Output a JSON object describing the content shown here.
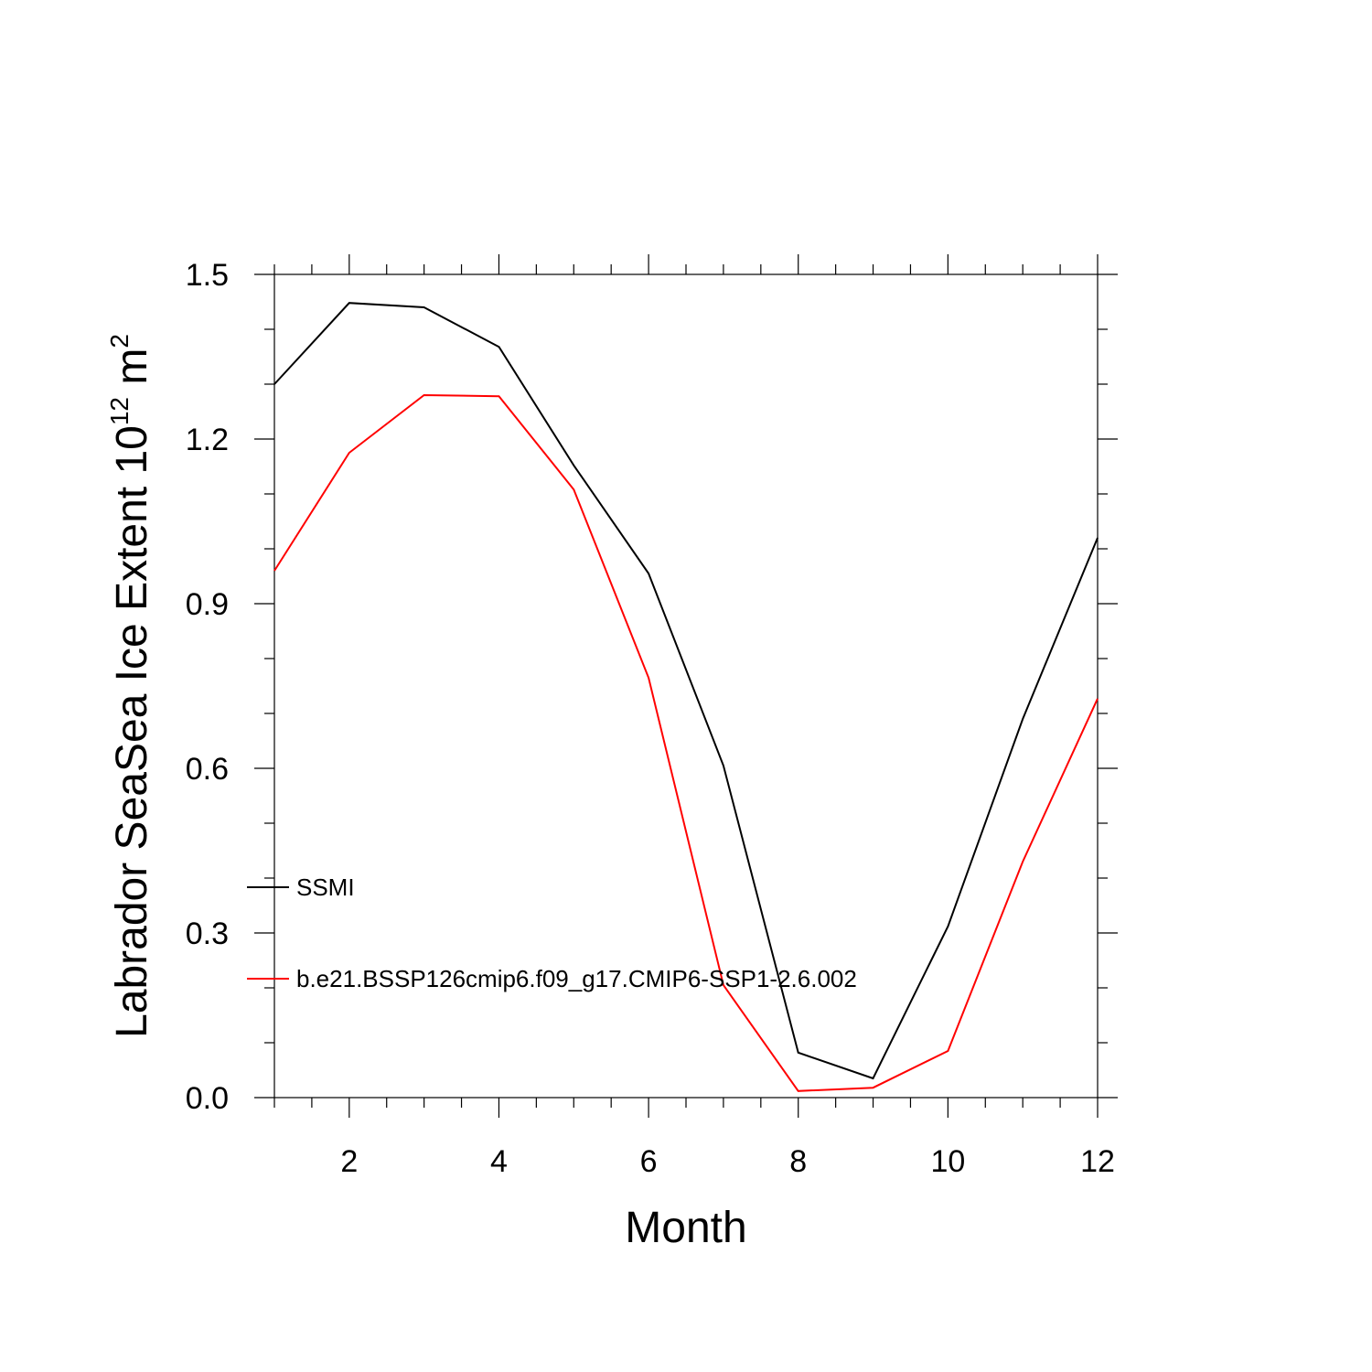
{
  "chart_data": {
    "type": "line",
    "title": "",
    "xlabel": "Month",
    "ylabel": {
      "main": "Labrador SeaSea Ice Extent 10",
      "superscript1": "12",
      "unit": "m",
      "superscript2": "2"
    },
    "xlim": [
      1,
      12
    ],
    "ylim": [
      0,
      1.5
    ],
    "x_ticks": [
      2,
      4,
      6,
      8,
      10,
      12
    ],
    "y_ticks": [
      "0.0",
      "0.3",
      "0.6",
      "0.9",
      "1.2",
      "1.5"
    ],
    "x": [
      1,
      2,
      3,
      4,
      5,
      6,
      7,
      8,
      9,
      10,
      11,
      12
    ],
    "grid": false,
    "legend_position": "bottom-left inside",
    "series": [
      {
        "name": "SSMI",
        "color": "#000000",
        "values": [
          1.3,
          1.448,
          1.44,
          1.368,
          1.152,
          0.955,
          0.605,
          0.082,
          0.035,
          0.312,
          0.69,
          1.02
        ]
      },
      {
        "name": "b.e21.BSSP126cmip6.f09_g17.CMIP6-SSP1-2.6.002",
        "color": "#ff0000",
        "values": [
          0.96,
          1.175,
          1.28,
          1.278,
          1.108,
          0.765,
          0.205,
          0.012,
          0.018,
          0.085,
          0.43,
          0.727
        ]
      }
    ]
  }
}
